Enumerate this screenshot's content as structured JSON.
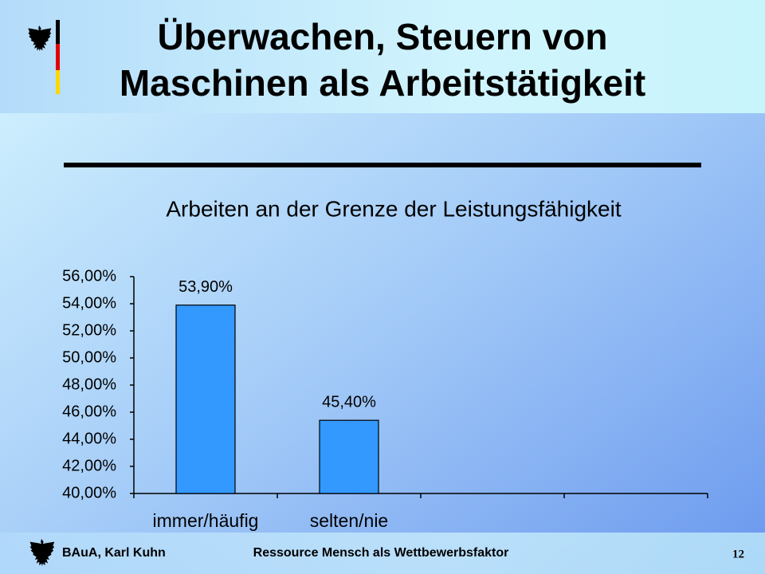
{
  "slide": {
    "title": [
      "Überwachen, Steuern von",
      "Maschinen als Arbeitstätigkeit"
    ],
    "footer": {
      "author": "BAuA, Karl Kuhn",
      "topic": "Ressource Mensch als Wettbewerbsfaktor",
      "page": "12"
    }
  },
  "chart_data": {
    "type": "bar",
    "title": "Arbeiten an der Grenze der Leistungsfähigkeit",
    "categories": [
      "immer/häufig",
      "selten/nie",
      null,
      null
    ],
    "values": [
      53.9,
      45.4,
      null,
      null
    ],
    "value_labels": [
      "53,90%",
      "45,40%",
      null,
      null
    ],
    "color": "#3399ff",
    "ylim": [
      40,
      56
    ],
    "yticks": [
      {
        "value": 40,
        "label": "40,00%"
      },
      {
        "value": 42,
        "label": "42,00%"
      },
      {
        "value": 44,
        "label": "44,00%"
      },
      {
        "value": 46,
        "label": "46,00%"
      },
      {
        "value": 48,
        "label": "48,00%"
      },
      {
        "value": 50,
        "label": "50,00%"
      },
      {
        "value": 52,
        "label": "52,00%"
      },
      {
        "value": 54,
        "label": "54,00%"
      },
      {
        "value": 56,
        "label": "56,00%"
      }
    ],
    "grid": false
  }
}
